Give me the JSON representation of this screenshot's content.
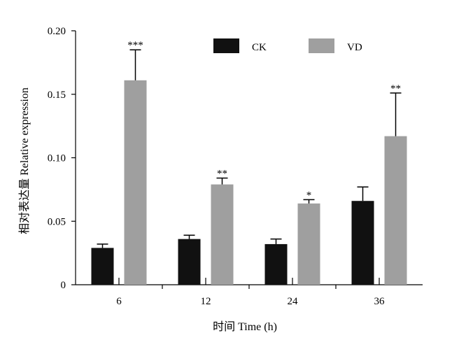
{
  "chart_data": {
    "type": "bar",
    "xlabel": "时间 Time (h)",
    "ylabel": "相对表达量 Relative expression",
    "ylim": [
      0,
      0.2
    ],
    "yticks": [
      "0",
      "0.05",
      "0.10",
      "0.15",
      "0.20"
    ],
    "categories": [
      "6",
      "12",
      "24",
      "36"
    ],
    "series": [
      {
        "name": "CK",
        "color": "#111111",
        "values": [
          0.029,
          0.036,
          0.032,
          0.066
        ],
        "errors": [
          0.003,
          0.003,
          0.004,
          0.011
        ]
      },
      {
        "name": "VD",
        "color": "#9f9f9f",
        "values": [
          0.161,
          0.079,
          0.064,
          0.117
        ],
        "errors": [
          0.024,
          0.005,
          0.003,
          0.034
        ]
      }
    ],
    "annotations": [
      "***",
      "**",
      "*",
      "**"
    ],
    "legend_position": "top-right",
    "grid": false
  }
}
